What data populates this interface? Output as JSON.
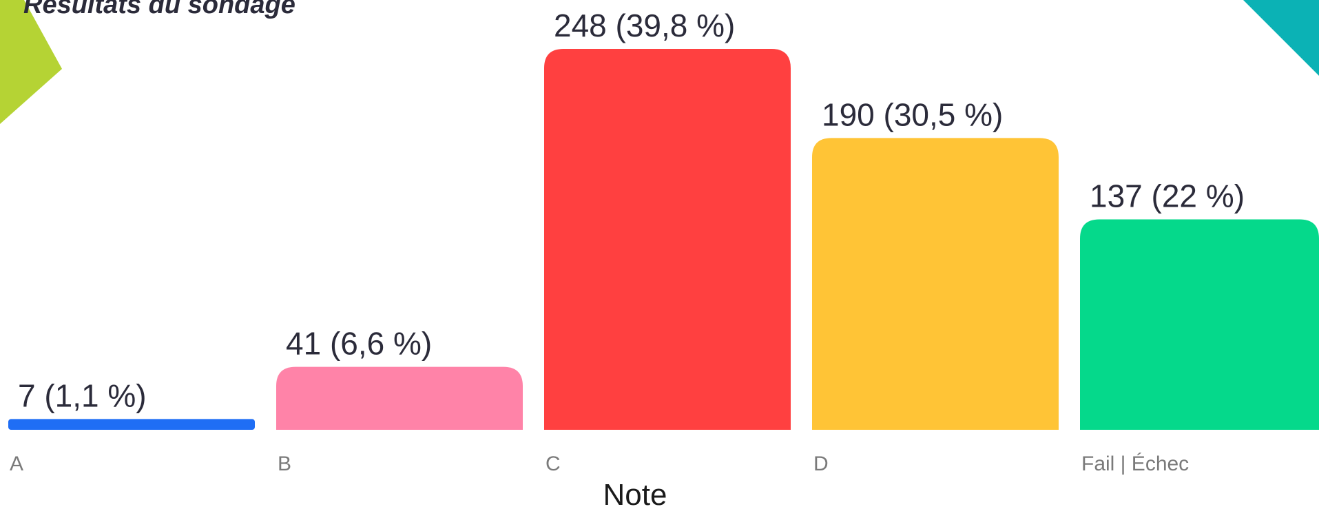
{
  "chart_data": {
    "type": "bar",
    "title": "Résultats du sondage",
    "xlabel": "Note",
    "ylabel": "",
    "categories": [
      "A",
      "B",
      "C",
      "D",
      "Fail | Échec"
    ],
    "values": [
      7,
      41,
      248,
      190,
      137
    ],
    "percent_labels": [
      "(1,1 %)",
      "(6,6 %)",
      "(39,8 %)",
      "(30,5 %)",
      "(22 %)"
    ],
    "colors": [
      "#1f6ef5",
      "#ff83a8",
      "#ff4040",
      "#ffc436",
      "#05d98b"
    ],
    "ylim": [
      0,
      248
    ],
    "grid": false,
    "legend": "none"
  },
  "decor": {
    "left_corner_color": "#b5d334",
    "right_corner_color": "#0bb2b5"
  }
}
